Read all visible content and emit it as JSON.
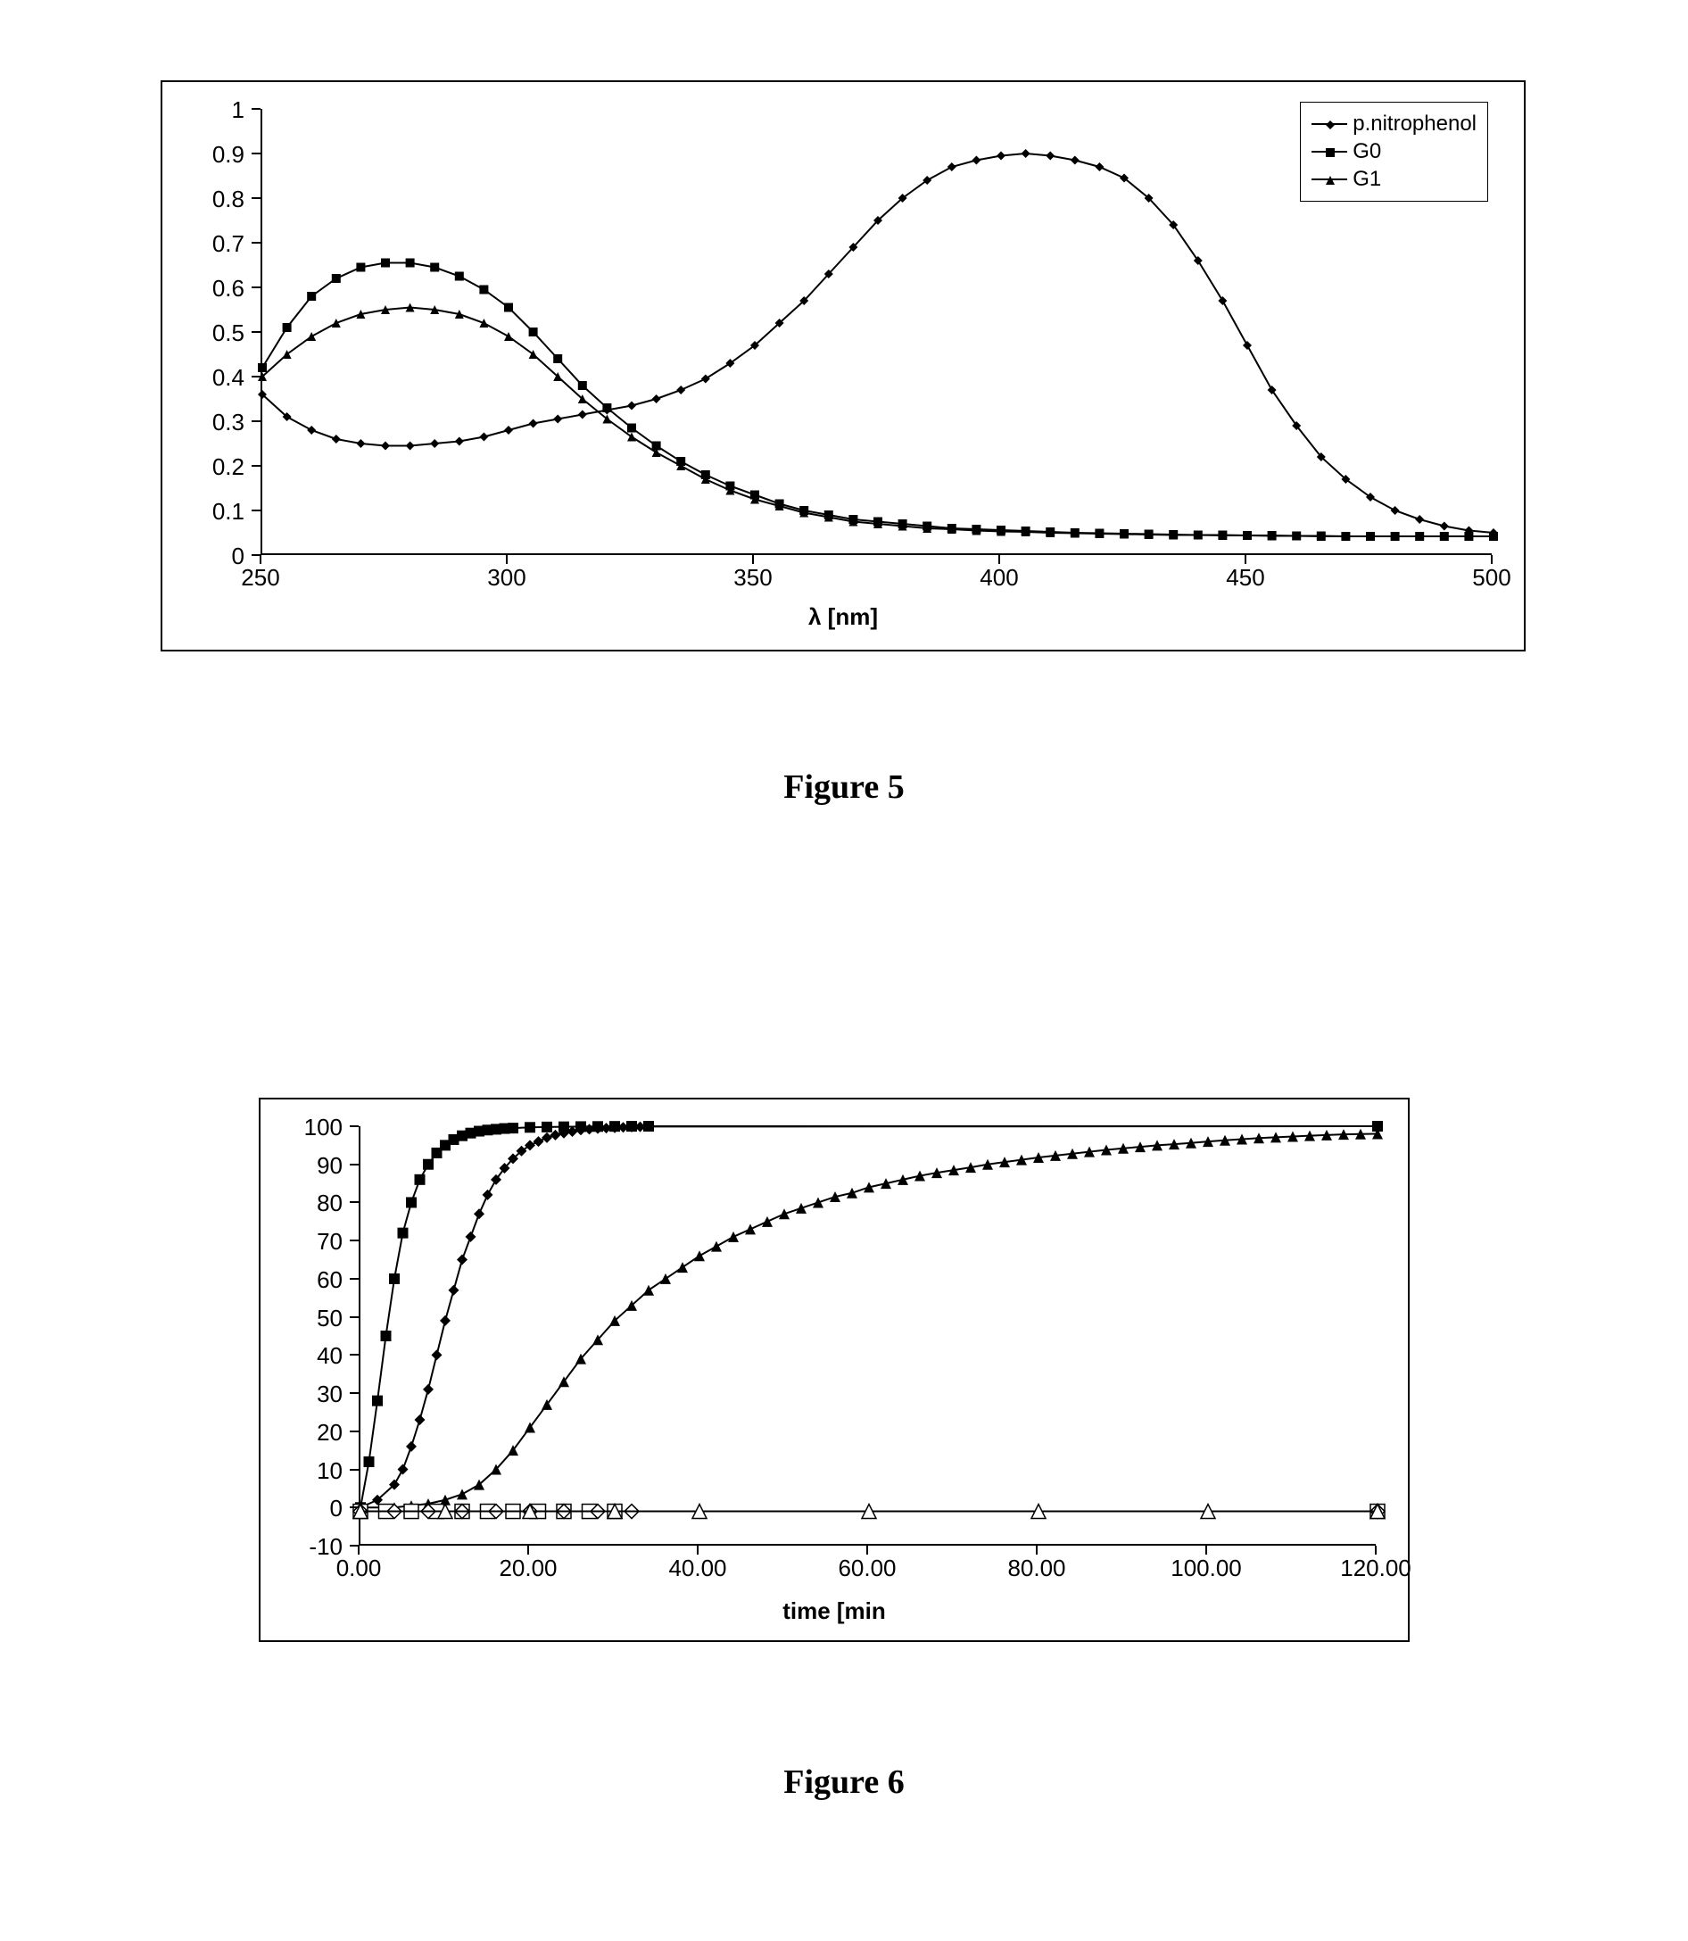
{
  "figure5": {
    "caption": "Figure 5",
    "type": "line",
    "xlabel": "λ [nm]",
    "xlim": [
      250,
      500
    ],
    "xtick_step": 50,
    "xticks": [
      250,
      300,
      350,
      400,
      450,
      500
    ],
    "ylim": [
      0,
      1
    ],
    "ytick_step": 0.1,
    "yticks": [
      0,
      0.1,
      0.2,
      0.3,
      0.4,
      0.5,
      0.6,
      0.7,
      0.8,
      0.9,
      1
    ],
    "background_color": "#ffffff",
    "border_color": "#000000",
    "line_color": "#000000",
    "line_width": 2,
    "marker_size": 5,
    "tick_fontsize": 26,
    "label_fontsize": 26,
    "legend": {
      "position": "top-right",
      "items": [
        {
          "label": "p.nitrophenol",
          "marker": "diamond"
        },
        {
          "label": "G0",
          "marker": "square"
        },
        {
          "label": "G1",
          "marker": "triangle"
        }
      ]
    },
    "series": [
      {
        "name": "p.nitrophenol",
        "marker": "diamond",
        "x": [
          250,
          255,
          260,
          265,
          270,
          275,
          280,
          285,
          290,
          295,
          300,
          305,
          310,
          315,
          320,
          325,
          330,
          335,
          340,
          345,
          350,
          355,
          360,
          365,
          370,
          375,
          380,
          385,
          390,
          395,
          400,
          405,
          410,
          415,
          420,
          425,
          430,
          435,
          440,
          445,
          450,
          455,
          460,
          465,
          470,
          475,
          480,
          485,
          490,
          495,
          500
        ],
        "y": [
          0.36,
          0.31,
          0.28,
          0.26,
          0.25,
          0.245,
          0.245,
          0.25,
          0.255,
          0.265,
          0.28,
          0.295,
          0.305,
          0.315,
          0.325,
          0.335,
          0.35,
          0.37,
          0.395,
          0.43,
          0.47,
          0.52,
          0.57,
          0.63,
          0.69,
          0.75,
          0.8,
          0.84,
          0.87,
          0.885,
          0.895,
          0.9,
          0.895,
          0.885,
          0.87,
          0.845,
          0.8,
          0.74,
          0.66,
          0.57,
          0.47,
          0.37,
          0.29,
          0.22,
          0.17,
          0.13,
          0.1,
          0.08,
          0.065,
          0.055,
          0.05
        ]
      },
      {
        "name": "G0",
        "marker": "square",
        "x": [
          250,
          255,
          260,
          265,
          270,
          275,
          280,
          285,
          290,
          295,
          300,
          305,
          310,
          315,
          320,
          325,
          330,
          335,
          340,
          345,
          350,
          355,
          360,
          365,
          370,
          375,
          380,
          385,
          390,
          395,
          400,
          405,
          410,
          415,
          420,
          425,
          430,
          435,
          440,
          445,
          450,
          455,
          460,
          465,
          470,
          475,
          480,
          485,
          490,
          495,
          500
        ],
        "y": [
          0.42,
          0.51,
          0.58,
          0.62,
          0.645,
          0.655,
          0.655,
          0.645,
          0.625,
          0.595,
          0.555,
          0.5,
          0.44,
          0.38,
          0.33,
          0.285,
          0.245,
          0.21,
          0.18,
          0.155,
          0.135,
          0.115,
          0.1,
          0.09,
          0.08,
          0.075,
          0.07,
          0.065,
          0.06,
          0.058,
          0.056,
          0.054,
          0.052,
          0.05,
          0.049,
          0.048,
          0.047,
          0.046,
          0.045,
          0.045,
          0.044,
          0.044,
          0.043,
          0.043,
          0.042,
          0.042,
          0.042,
          0.042,
          0.042,
          0.042,
          0.042
        ]
      },
      {
        "name": "G1",
        "marker": "triangle",
        "x": [
          250,
          255,
          260,
          265,
          270,
          275,
          280,
          285,
          290,
          295,
          300,
          305,
          310,
          315,
          320,
          325,
          330,
          335,
          340,
          345,
          350,
          355,
          360,
          365,
          370,
          375,
          380,
          385,
          390,
          395,
          400,
          405,
          410,
          415,
          420,
          425,
          430,
          435,
          440,
          445,
          450,
          455,
          460,
          465,
          470,
          475,
          480,
          485,
          490,
          495,
          500
        ],
        "y": [
          0.4,
          0.45,
          0.49,
          0.52,
          0.54,
          0.55,
          0.555,
          0.55,
          0.54,
          0.52,
          0.49,
          0.45,
          0.4,
          0.35,
          0.305,
          0.265,
          0.23,
          0.2,
          0.17,
          0.145,
          0.125,
          0.11,
          0.095,
          0.085,
          0.075,
          0.07,
          0.065,
          0.06,
          0.058,
          0.055,
          0.053,
          0.052,
          0.05,
          0.049,
          0.048,
          0.047,
          0.046,
          0.045,
          0.045,
          0.044,
          0.044,
          0.043,
          0.043,
          0.042,
          0.042,
          0.042,
          0.042,
          0.042,
          0.042,
          0.042,
          0.042
        ]
      }
    ]
  },
  "figure6": {
    "caption": "Figure 6",
    "type": "line",
    "xlabel": "time [min",
    "xlim": [
      0,
      120
    ],
    "xticks": [
      0,
      20,
      40,
      60,
      80,
      100,
      120
    ],
    "xtick_labels": [
      "0.00",
      "20.00",
      "40.00",
      "60.00",
      "80.00",
      "100.00",
      "120.00"
    ],
    "ylim": [
      -10,
      100
    ],
    "yticks": [
      -10,
      0,
      10,
      20,
      30,
      40,
      50,
      60,
      70,
      80,
      90,
      100
    ],
    "background_color": "#ffffff",
    "border_color": "#000000",
    "line_color": "#000000",
    "line_width": 2,
    "marker_size_filled": 6,
    "marker_size_open": 8,
    "tick_fontsize": 26,
    "label_fontsize": 26,
    "series": [
      {
        "name": "filled-square",
        "marker": "square",
        "filled": true,
        "x": [
          0,
          1,
          2,
          3,
          4,
          5,
          6,
          7,
          8,
          9,
          10,
          11,
          12,
          13,
          14,
          15,
          16,
          17,
          18,
          20,
          22,
          24,
          26,
          28,
          30,
          32,
          34,
          120
        ],
        "y": [
          0,
          12,
          28,
          45,
          60,
          72,
          80,
          86,
          90,
          93,
          95,
          96.5,
          97.5,
          98.2,
          98.7,
          99.0,
          99.2,
          99.4,
          99.5,
          99.7,
          99.8,
          99.85,
          99.9,
          99.93,
          99.96,
          99.98,
          100,
          100
        ]
      },
      {
        "name": "filled-diamond",
        "marker": "diamond",
        "filled": true,
        "x": [
          0,
          2,
          4,
          5,
          6,
          7,
          8,
          9,
          10,
          11,
          12,
          13,
          14,
          15,
          16,
          17,
          18,
          19,
          20,
          21,
          22,
          23,
          24,
          25,
          26,
          27,
          28,
          29,
          30,
          31,
          32,
          33,
          34,
          120
        ],
        "y": [
          0,
          2,
          6,
          10,
          16,
          23,
          31,
          40,
          49,
          57,
          65,
          71,
          77,
          82,
          86,
          89,
          91.5,
          93.5,
          95,
          96,
          97,
          97.7,
          98.2,
          98.6,
          99,
          99.2,
          99.4,
          99.5,
          99.6,
          99.7,
          99.8,
          99.85,
          99.9,
          100
        ]
      },
      {
        "name": "filled-triangle",
        "marker": "triangle",
        "filled": true,
        "x": [
          0,
          4,
          6,
          8,
          10,
          12,
          14,
          16,
          18,
          20,
          22,
          24,
          26,
          28,
          30,
          32,
          34,
          36,
          38,
          40,
          42,
          44,
          46,
          48,
          50,
          52,
          54,
          56,
          58,
          60,
          62,
          64,
          66,
          68,
          70,
          72,
          74,
          76,
          78,
          80,
          82,
          84,
          86,
          88,
          90,
          92,
          94,
          96,
          98,
          100,
          102,
          104,
          106,
          108,
          110,
          112,
          114,
          116,
          118,
          120
        ],
        "y": [
          0,
          0,
          0.5,
          1,
          2,
          3.5,
          6,
          10,
          15,
          21,
          27,
          33,
          39,
          44,
          49,
          53,
          57,
          60,
          63,
          66,
          68.5,
          71,
          73,
          75,
          77,
          78.5,
          80,
          81.5,
          82.5,
          84,
          85,
          86,
          87,
          87.8,
          88.5,
          89.2,
          90,
          90.6,
          91.2,
          91.8,
          92.3,
          92.8,
          93.3,
          93.8,
          94.2,
          94.6,
          95,
          95.3,
          95.6,
          96,
          96.3,
          96.6,
          96.9,
          97.1,
          97.3,
          97.5,
          97.7,
          97.85,
          97.95,
          98
        ]
      },
      {
        "name": "open-square",
        "marker": "square",
        "filled": false,
        "x": [
          0,
          3,
          6,
          9,
          12,
          15,
          18,
          21,
          24,
          27,
          30,
          120
        ],
        "y": [
          -1,
          -1,
          -1,
          -1,
          -1,
          -1,
          -1,
          -1,
          -1,
          -1,
          -1,
          -1
        ]
      },
      {
        "name": "open-diamond",
        "marker": "diamond",
        "filled": false,
        "x": [
          0,
          4,
          8,
          12,
          16,
          20,
          24,
          28,
          32,
          120
        ],
        "y": [
          -1,
          -1,
          -1,
          -1,
          -1,
          -1,
          -1,
          -1,
          -1,
          -1
        ]
      },
      {
        "name": "open-triangle",
        "marker": "triangle",
        "filled": false,
        "x": [
          0,
          10,
          20,
          30,
          40,
          60,
          80,
          100,
          120
        ],
        "y": [
          -1,
          -1,
          -1,
          -1,
          -1,
          -1,
          -1,
          -1,
          -1
        ]
      }
    ]
  }
}
